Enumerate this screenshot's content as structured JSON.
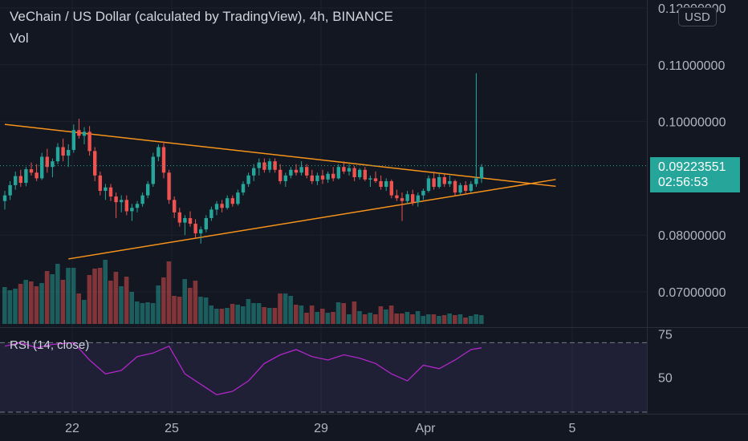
{
  "header": {
    "title": "VeChain / US Dollar (calculated by TradingView), 4h, BINANCE",
    "volume_label": "Vol",
    "currency_badge": "USD"
  },
  "price_tag": {
    "price": "0.09223551",
    "countdown": "02:56:53"
  },
  "rsi_label": "RSI (14, close)",
  "colors": {
    "up": "#26a69a",
    "down": "#ef5350",
    "trendline": "#f7931a",
    "rsi": "#b027c8",
    "background": "#131722"
  },
  "chart_data": [
    {
      "type": "candlestick",
      "title": "VeChain / US Dollar (calculated by TradingView), 4h, BINANCE",
      "x_tick_labels": [
        "22",
        "25",
        "29",
        "Apr",
        "5"
      ],
      "y_tick_labels": [
        "0.12000000",
        "0.11000000",
        "0.10000000",
        "0.08000000",
        "0.07000000"
      ],
      "ylim": [
        0.065,
        0.121
      ],
      "close_price_line": 0.09223551,
      "trendlines": [
        {
          "name": "descending",
          "points": [
            [
              0,
              0.0995
            ],
            [
              104,
              0.0886
            ]
          ]
        },
        {
          "name": "ascending",
          "points": [
            [
              12,
              0.0758
            ],
            [
              104,
              0.0898
            ]
          ]
        }
      ],
      "candles": [
        [
          0.086,
          0.0878,
          0.0845,
          0.087
        ],
        [
          0.087,
          0.0895,
          0.0862,
          0.0888
        ],
        [
          0.0888,
          0.0912,
          0.088,
          0.0904
        ],
        [
          0.0904,
          0.0915,
          0.0885,
          0.0892
        ],
        [
          0.0892,
          0.092,
          0.0886,
          0.0916
        ],
        [
          0.0916,
          0.0928,
          0.0905,
          0.091
        ],
        [
          0.091,
          0.0925,
          0.0895,
          0.09
        ],
        [
          0.09,
          0.0945,
          0.0897,
          0.0938
        ],
        [
          0.0938,
          0.0952,
          0.091,
          0.092
        ],
        [
          0.092,
          0.0935,
          0.0902,
          0.093
        ],
        [
          0.093,
          0.0962,
          0.0925,
          0.0955
        ],
        [
          0.0955,
          0.097,
          0.093,
          0.094
        ],
        [
          0.094,
          0.096,
          0.092,
          0.095
        ],
        [
          0.095,
          0.0995,
          0.0945,
          0.0985
        ],
        [
          0.0985,
          0.1005,
          0.097,
          0.0975
        ],
        [
          0.0975,
          0.099,
          0.096,
          0.0982
        ],
        [
          0.0982,
          0.0992,
          0.094,
          0.0948
        ],
        [
          0.0948,
          0.0955,
          0.0895,
          0.0905
        ],
        [
          0.0905,
          0.0912,
          0.087,
          0.0878
        ],
        [
          0.0878,
          0.089,
          0.0862,
          0.0884
        ],
        [
          0.0884,
          0.089,
          0.086,
          0.0868
        ],
        [
          0.0868,
          0.0875,
          0.083,
          0.0858
        ],
        [
          0.0858,
          0.087,
          0.084,
          0.0862
        ],
        [
          0.0862,
          0.087,
          0.0835,
          0.0842
        ],
        [
          0.0842,
          0.0855,
          0.0825,
          0.0848
        ],
        [
          0.0848,
          0.086,
          0.084,
          0.0855
        ],
        [
          0.0855,
          0.0875,
          0.085,
          0.087
        ],
        [
          0.087,
          0.0895,
          0.0865,
          0.089
        ],
        [
          0.089,
          0.0945,
          0.0885,
          0.0938
        ],
        [
          0.0938,
          0.096,
          0.093,
          0.0955
        ],
        [
          0.0955,
          0.0965,
          0.09,
          0.091
        ],
        [
          0.091,
          0.0915,
          0.0855,
          0.0862
        ],
        [
          0.0862,
          0.0868,
          0.083,
          0.084
        ],
        [
          0.084,
          0.0848,
          0.0815,
          0.0822
        ],
        [
          0.0822,
          0.0835,
          0.08,
          0.083
        ],
        [
          0.083,
          0.0842,
          0.0815,
          0.082
        ],
        [
          0.082,
          0.0828,
          0.0795,
          0.0803
        ],
        [
          0.0803,
          0.0815,
          0.0785,
          0.081
        ],
        [
          0.081,
          0.0835,
          0.0805,
          0.083
        ],
        [
          0.083,
          0.085,
          0.0825,
          0.0845
        ],
        [
          0.0845,
          0.086,
          0.0835,
          0.0855
        ],
        [
          0.0855,
          0.0862,
          0.084,
          0.0848
        ],
        [
          0.0848,
          0.087,
          0.0845,
          0.0865
        ],
        [
          0.0865,
          0.087,
          0.085,
          0.0855
        ],
        [
          0.0855,
          0.088,
          0.0852,
          0.0875
        ],
        [
          0.0875,
          0.0895,
          0.087,
          0.089
        ],
        [
          0.089,
          0.091,
          0.0885,
          0.0905
        ],
        [
          0.0905,
          0.0925,
          0.0895,
          0.0918
        ],
        [
          0.0918,
          0.0935,
          0.0905,
          0.0928
        ],
        [
          0.0928,
          0.0935,
          0.091,
          0.0915
        ],
        [
          0.0915,
          0.0935,
          0.091,
          0.093
        ],
        [
          0.093,
          0.0935,
          0.091,
          0.0915
        ],
        [
          0.0915,
          0.0925,
          0.089,
          0.0895
        ],
        [
          0.0895,
          0.091,
          0.0885,
          0.0905
        ],
        [
          0.0905,
          0.092,
          0.09,
          0.0915
        ],
        [
          0.0915,
          0.0925,
          0.0905,
          0.091
        ],
        [
          0.091,
          0.093,
          0.0905,
          0.092
        ],
        [
          0.092,
          0.0925,
          0.09,
          0.0905
        ],
        [
          0.0905,
          0.0915,
          0.089,
          0.0895
        ],
        [
          0.0895,
          0.091,
          0.0888,
          0.0905
        ],
        [
          0.0905,
          0.0915,
          0.089,
          0.0898
        ],
        [
          0.0898,
          0.0912,
          0.0892,
          0.0908
        ],
        [
          0.0908,
          0.092,
          0.0895,
          0.09
        ],
        [
          0.09,
          0.0925,
          0.0898,
          0.092
        ],
        [
          0.092,
          0.093,
          0.0908,
          0.0912
        ],
        [
          0.0912,
          0.0925,
          0.0905,
          0.0918
        ],
        [
          0.0918,
          0.0922,
          0.0895,
          0.0902
        ],
        [
          0.0902,
          0.0918,
          0.0898,
          0.0915
        ],
        [
          0.0915,
          0.092,
          0.0895,
          0.0898
        ],
        [
          0.0898,
          0.0905,
          0.0885,
          0.09
        ],
        [
          0.09,
          0.0912,
          0.0892,
          0.0895
        ],
        [
          0.0895,
          0.0905,
          0.088,
          0.0885
        ],
        [
          0.0885,
          0.09,
          0.0878,
          0.0895
        ],
        [
          0.0895,
          0.0898,
          0.0865,
          0.087
        ],
        [
          0.087,
          0.088,
          0.086,
          0.0865
        ],
        [
          0.0865,
          0.0875,
          0.0825,
          0.086
        ],
        [
          0.086,
          0.0878,
          0.0855,
          0.0872
        ],
        [
          0.0872,
          0.088,
          0.0852,
          0.0858
        ],
        [
          0.0858,
          0.0875,
          0.085,
          0.087
        ],
        [
          0.087,
          0.0882,
          0.0862,
          0.0878
        ],
        [
          0.0878,
          0.0905,
          0.0875,
          0.09
        ],
        [
          0.09,
          0.0912,
          0.088,
          0.0885
        ],
        [
          0.0885,
          0.0908,
          0.0882,
          0.0902
        ],
        [
          0.0902,
          0.0908,
          0.0885,
          0.089
        ],
        [
          0.089,
          0.0905,
          0.0885,
          0.0895
        ],
        [
          0.0895,
          0.0898,
          0.087,
          0.0875
        ],
        [
          0.0875,
          0.0892,
          0.087,
          0.0888
        ],
        [
          0.0888,
          0.0895,
          0.0872,
          0.0878
        ],
        [
          0.0878,
          0.0895,
          0.0875,
          0.089
        ],
        [
          0.089,
          0.1085,
          0.0885,
          0.09
        ],
        [
          0.09,
          0.0925,
          0.0892,
          0.092
        ]
      ]
    },
    {
      "type": "bar",
      "name": "Vol",
      "values": [
        46,
        42,
        44,
        50,
        55,
        53,
        47,
        51,
        66,
        62,
        75,
        55,
        70,
        70,
        38,
        30,
        61,
        69,
        70,
        80,
        54,
        65,
        47,
        59,
        40,
        28,
        26,
        27,
        26,
        48,
        58,
        78,
        35,
        34,
        56,
        45,
        54,
        34,
        33,
        23,
        19,
        19,
        20,
        25,
        24,
        22,
        31,
        26,
        26,
        21,
        20,
        20,
        38,
        38,
        35,
        24,
        23,
        14,
        23,
        15,
        19,
        14,
        15,
        27,
        26,
        12,
        28,
        16,
        12,
        14,
        12,
        22,
        18,
        23,
        13,
        13,
        15,
        12,
        16,
        10,
        12,
        12,
        10,
        11,
        13,
        11,
        12,
        8,
        10,
        12,
        11
      ]
    },
    {
      "type": "line",
      "name": "RSI (14, close)",
      "y_tick_labels": [
        "75",
        "50"
      ],
      "ylim": [
        30,
        78
      ],
      "bands": [
        70,
        30
      ],
      "x": [
        0,
        3,
        6,
        9,
        13,
        16,
        19,
        22,
        25,
        28,
        31,
        34,
        37,
        40,
        43,
        46,
        49,
        52,
        55,
        58,
        61,
        64,
        67,
        70,
        73,
        76,
        79,
        82,
        85,
        88,
        90
      ],
      "values": [
        68,
        70,
        67,
        69,
        70,
        60,
        52,
        54,
        62,
        64,
        68,
        52,
        46,
        40,
        42,
        48,
        58,
        63,
        66,
        62,
        60,
        63,
        61,
        58,
        52,
        48,
        57,
        55,
        60,
        66,
        67
      ]
    }
  ]
}
